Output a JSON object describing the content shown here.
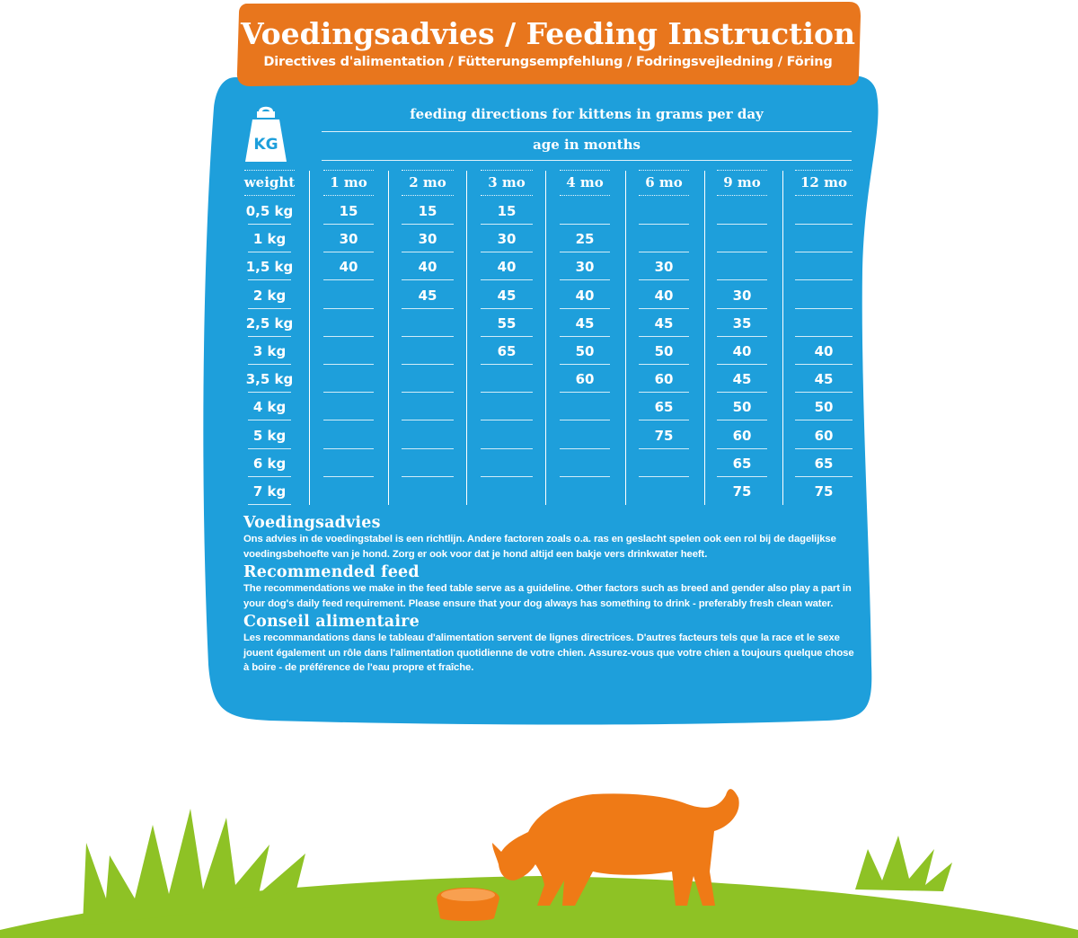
{
  "colors": {
    "panel_blue": "#1e9fdb",
    "banner_orange": "#e8761d",
    "grass_green": "#8ec225",
    "cat_orange": "#ef7a16",
    "text_white": "#ffffff"
  },
  "header": {
    "title": "Voedingsadvies / Feeding Instruction",
    "subtitle": "Directives d'alimentation / Fütterungsempfehlung / Fodringsvejledning / Föring"
  },
  "icon": {
    "name": "weight-kg-icon",
    "label": "KG"
  },
  "table": {
    "caption": "feeding directions for kittens in grams per day",
    "subcaption": "age in months",
    "weight_header": "weight",
    "columns": [
      "1 mo",
      "2 mo",
      "3 mo",
      "4 mo",
      "6 mo",
      "9 mo",
      "12 mo"
    ],
    "rows": [
      {
        "weight": "0,5 kg",
        "values": [
          "15",
          "15",
          "15",
          "",
          "",
          "",
          ""
        ]
      },
      {
        "weight": "1 kg",
        "values": [
          "30",
          "30",
          "30",
          "25",
          "",
          "",
          ""
        ]
      },
      {
        "weight": "1,5 kg",
        "values": [
          "40",
          "40",
          "40",
          "30",
          "30",
          "",
          ""
        ]
      },
      {
        "weight": "2 kg",
        "values": [
          "",
          "45",
          "45",
          "40",
          "40",
          "30",
          ""
        ]
      },
      {
        "weight": "2,5 kg",
        "values": [
          "",
          "",
          "55",
          "45",
          "45",
          "35",
          ""
        ]
      },
      {
        "weight": "3 kg",
        "values": [
          "",
          "",
          "65",
          "50",
          "50",
          "40",
          "40"
        ]
      },
      {
        "weight": "3,5 kg",
        "values": [
          "",
          "",
          "",
          "60",
          "60",
          "45",
          "45"
        ]
      },
      {
        "weight": "4 kg",
        "values": [
          "",
          "",
          "",
          "",
          "65",
          "50",
          "50"
        ]
      },
      {
        "weight": "5 kg",
        "values": [
          "",
          "",
          "",
          "",
          "75",
          "60",
          "60"
        ]
      },
      {
        "weight": "6 kg",
        "values": [
          "",
          "",
          "",
          "",
          "",
          "65",
          "65"
        ]
      },
      {
        "weight": "7 kg",
        "values": [
          "",
          "",
          "",
          "",
          "",
          "75",
          "75"
        ]
      }
    ]
  },
  "sections": [
    {
      "title": "Voedingsadvies",
      "body": "Ons advies in de voedingstabel is een richtlijn. Andere factoren zoals o.a. ras en geslacht spelen ook een rol bij de dagelijkse voedingsbehoefte van je hond. Zorg er ook voor dat je hond altijd een bakje vers drinkwater heeft."
    },
    {
      "title": "Recommended feed",
      "body": "The recommendations we make in the feed table serve as a guideline. Other factors such as breed and gender also play a part in your dog's daily feed requirement. Please ensure that your dog always has something to drink - preferably fresh clean water."
    },
    {
      "title": "Conseil alimentaire",
      "body": "Les recommandations dans le tableau d'alimentation servent de lignes directrices. D'autres facteurs tels que la race et le sexe jouent également un rôle dans l'alimentation quotidienne de votre chien. Assurez-vous que votre chien a toujours quelque chose à boire - de préférence de l'eau propre et fraîche."
    }
  ],
  "illustration": {
    "subject": "cat-eating-from-bowl-icon",
    "ground": "grass-hill"
  }
}
